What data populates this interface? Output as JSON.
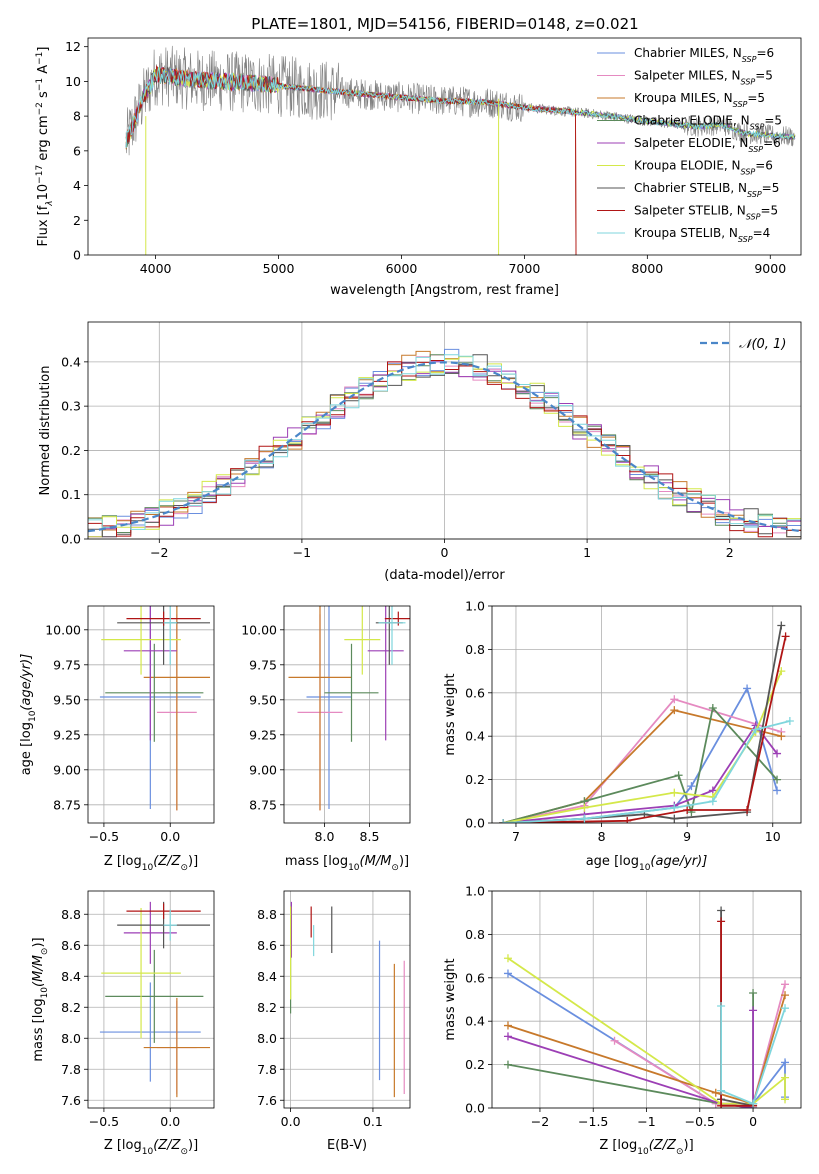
{
  "title": "PLATE=1801, MJD=54156, FIBERID=0148, z=0.021",
  "legend": [
    {
      "base": "Chabrier MILES, N",
      "sub": "SSP",
      "tail": "=6",
      "color": "#6a8fdf"
    },
    {
      "base": "Salpeter MILES, N",
      "sub": "SSP",
      "tail": "=5",
      "color": "#e58ac1"
    },
    {
      "base": "Kroupa MILES, N",
      "sub": "SSP",
      "tail": "=5",
      "color": "#c7792b"
    },
    {
      "base": "Chabrier ELODIE, N",
      "sub": "SSP",
      "tail": "=5",
      "color": "#5c8a5c"
    },
    {
      "base": "Salpeter ELODIE, N",
      "sub": "SSP",
      "tail": "=6",
      "color": "#9c3fb5"
    },
    {
      "base": "Kroupa ELODIE, N",
      "sub": "SSP",
      "tail": "=6",
      "color": "#d4e84a"
    },
    {
      "base": "Chabrier STELIB, N",
      "sub": "SSP",
      "tail": "=5",
      "color": "#555555"
    },
    {
      "base": "Salpeter STELIB, N",
      "sub": "SSP",
      "tail": "=5",
      "color": "#b01515"
    },
    {
      "base": "Kroupa STELIB, N",
      "sub": "SSP",
      "tail": "=4",
      "color": "#7fd6dd"
    }
  ],
  "chart_data": [
    {
      "id": "spectrum",
      "type": "line",
      "xlabel": "wavelength [Angstrom, rest frame]",
      "ylabel_parts": [
        "Flux [f",
        "λ",
        "10",
        "−17",
        " erg cm",
        "−2",
        " s",
        "−1",
        " A",
        "−1",
        "]"
      ],
      "xlim": [
        3450,
        9250
      ],
      "ylim": [
        0,
        12.5
      ],
      "xticks": [
        4000,
        5000,
        6000,
        7000,
        8000,
        9000
      ],
      "yticks": [
        0,
        2,
        4,
        6,
        8,
        10,
        12
      ],
      "continuum": [
        [
          3760,
          6.5
        ],
        [
          3900,
          9.0
        ],
        [
          4000,
          10.4
        ],
        [
          4300,
          10.1
        ],
        [
          4800,
          9.9
        ],
        [
          5200,
          9.6
        ],
        [
          5800,
          9.2
        ],
        [
          6300,
          8.9
        ],
        [
          6700,
          8.8
        ],
        [
          7000,
          8.5
        ],
        [
          7300,
          8.3
        ],
        [
          7600,
          8.1
        ],
        [
          8000,
          7.7
        ],
        [
          8400,
          7.4
        ],
        [
          8600,
          7.5
        ],
        [
          8800,
          7.0
        ],
        [
          9200,
          6.8
        ]
      ]
    },
    {
      "id": "residuals",
      "type": "step-histogram",
      "xlabel": "(data-model)/error",
      "ylabel": "Normed distribution",
      "xlim": [
        -2.5,
        2.5
      ],
      "ylim": [
        0,
        0.49
      ],
      "xticks": [
        -2,
        -1,
        0,
        1,
        2
      ],
      "yticks": [
        0.0,
        0.1,
        0.2,
        0.3,
        0.4
      ],
      "bin_width": 0.1,
      "model": "N(0,1)",
      "model_legend": {
        "script": "𝒩",
        "rest": "(0, 1)"
      }
    },
    {
      "id": "age-vs-Z",
      "type": "scatter",
      "xlabel_parts": [
        "Z [log",
        "10",
        "(Z/Z",
        "⊙",
        ")]"
      ],
      "ylabel_parts": [
        "age  [log",
        "10",
        "(age/yr)]"
      ],
      "xlim": [
        -0.62,
        0.33
      ],
      "ylim": [
        8.62,
        10.17
      ],
      "xticks": [
        -0.5,
        0.0
      ],
      "yticks": [
        8.75,
        9.0,
        9.25,
        9.5,
        9.75,
        10.0
      ],
      "points": [
        {
          "series": "Chabrier MILES",
          "x": -0.15,
          "y": 9.52,
          "xerr": 0.38,
          "yerr": 0.8
        },
        {
          "series": "Salpeter MILES",
          "x": 0.05,
          "y": 9.41,
          "xerr": 0.15,
          "yerr": 0.7
        },
        {
          "series": "Kroupa MILES",
          "x": 0.05,
          "y": 9.66,
          "xerr": 0.25,
          "yerr": 0.95
        },
        {
          "series": "Chabrier ELODIE",
          "x": -0.12,
          "y": 9.55,
          "xerr": 0.37,
          "yerr": 0.35
        },
        {
          "series": "Salpeter ELODIE",
          "x": -0.15,
          "y": 9.85,
          "xerr": 0.2,
          "yerr": 0.64
        },
        {
          "series": "Kroupa ELODIE",
          "x": -0.22,
          "y": 9.93,
          "xerr": 0.3,
          "yerr": 0.25
        },
        {
          "series": "Chabrier STELIB",
          "x": -0.05,
          "y": 10.05,
          "xerr": 0.35,
          "yerr": 0.3
        },
        {
          "series": "Salpeter STELIB",
          "x": -0.05,
          "y": 10.08,
          "xerr": 0.28,
          "yerr": 0.05
        },
        {
          "series": "Kroupa STELIB",
          "x": 0.0,
          "y": 10.05,
          "xerr": 0.05,
          "yerr": 0.3
        }
      ]
    },
    {
      "id": "age-vs-mass",
      "type": "scatter",
      "xlabel_parts": [
        "mass [log",
        "10",
        "(M/M",
        "⊙",
        ")]"
      ],
      "xlim": [
        7.55,
        8.95
      ],
      "ylim": [
        8.62,
        10.17
      ],
      "xticks": [
        8.0,
        8.5
      ],
      "yticks": [
        8.75,
        9.0,
        9.25,
        9.5,
        9.75,
        10.0
      ],
      "points": [
        {
          "series": "Chabrier MILES",
          "x": 8.05,
          "y": 9.52,
          "xerr": 0.25,
          "yerr": 0.8
        },
        {
          "series": "Salpeter MILES",
          "x": 7.95,
          "y": 9.41,
          "xerr": 0.25,
          "yerr": 0.7
        },
        {
          "series": "Kroupa MILES",
          "x": 7.95,
          "y": 9.66,
          "xerr": 0.35,
          "yerr": 0.95
        },
        {
          "series": "Chabrier ELODIE",
          "x": 8.3,
          "y": 9.55,
          "xerr": 0.3,
          "yerr": 0.35
        },
        {
          "series": "Salpeter ELODIE",
          "x": 8.68,
          "y": 9.85,
          "xerr": 0.2,
          "yerr": 0.64
        },
        {
          "series": "Kroupa ELODIE",
          "x": 8.42,
          "y": 9.93,
          "xerr": 0.2,
          "yerr": 0.25
        },
        {
          "series": "Chabrier STELIB",
          "x": 8.72,
          "y": 10.05,
          "xerr": 0.15,
          "yerr": 0.3
        },
        {
          "series": "Salpeter STELIB",
          "x": 8.82,
          "y": 10.08,
          "xerr": 0.15,
          "yerr": 0.05
        },
        {
          "series": "Kroupa STELIB",
          "x": 8.75,
          "y": 10.05,
          "xerr": 0.15,
          "yerr": 0.3
        }
      ]
    },
    {
      "id": "weight-vs-age",
      "type": "line",
      "xlabel_parts": [
        "age  [log",
        "10",
        "(age/yr)]"
      ],
      "ylabel": "mass weight",
      "xlim": [
        6.72,
        10.33
      ],
      "ylim": [
        0,
        1.0
      ],
      "xticks": [
        7,
        8,
        9,
        10
      ],
      "yticks": [
        0.0,
        0.2,
        0.4,
        0.6,
        0.8,
        1.0
      ],
      "series": [
        {
          "name": "Chabrier MILES",
          "x": [
            6.85,
            7.8,
            8.85,
            9.05,
            9.7,
            10.05
          ],
          "y": [
            0.0,
            0.02,
            0.07,
            0.17,
            0.62,
            0.15
          ]
        },
        {
          "name": "Salpeter MILES",
          "x": [
            6.85,
            7.8,
            8.85,
            10.1
          ],
          "y": [
            0.0,
            0.08,
            0.57,
            0.42
          ]
        },
        {
          "name": "Kroupa MILES",
          "x": [
            6.85,
            7.8,
            8.85,
            10.1
          ],
          "y": [
            0.0,
            0.1,
            0.52,
            0.4
          ]
        },
        {
          "name": "Chabrier ELODIE",
          "x": [
            6.85,
            7.8,
            8.9,
            9.05,
            9.3,
            10.05
          ],
          "y": [
            0.0,
            0.1,
            0.22,
            0.05,
            0.53,
            0.2
          ]
        },
        {
          "name": "Salpeter ELODIE",
          "x": [
            6.85,
            7.8,
            8.85,
            9.3,
            9.8,
            10.05
          ],
          "y": [
            0.0,
            0.04,
            0.08,
            0.15,
            0.45,
            0.32
          ]
        },
        {
          "name": "Kroupa ELODIE",
          "x": [
            6.85,
            7.8,
            8.85,
            9.3,
            9.8,
            10.1
          ],
          "y": [
            0.0,
            0.07,
            0.14,
            0.12,
            0.42,
            0.7
          ]
        },
        {
          "name": "Chabrier STELIB",
          "x": [
            6.85,
            7.8,
            8.5,
            8.85,
            9.7,
            10.1
          ],
          "y": [
            0.0,
            0.02,
            0.04,
            0.02,
            0.05,
            0.91
          ]
        },
        {
          "name": "Salpeter STELIB",
          "x": [
            6.85,
            8.3,
            9.0,
            9.7,
            10.15
          ],
          "y": [
            0.0,
            0.01,
            0.06,
            0.06,
            0.86
          ]
        },
        {
          "name": "Kroupa STELIB",
          "x": [
            6.85,
            7.8,
            8.85,
            9.3,
            9.8,
            10.2
          ],
          "y": [
            0.0,
            0.02,
            0.07,
            0.1,
            0.43,
            0.47
          ]
        }
      ]
    },
    {
      "id": "mass-vs-Z",
      "type": "scatter",
      "xlabel_parts": [
        "Z [log",
        "10",
        "(Z/Z",
        "⊙",
        ")]"
      ],
      "ylabel_parts": [
        "mass [log",
        "10",
        "(M/M",
        "⊙",
        ")]"
      ],
      "xlim": [
        -0.62,
        0.33
      ],
      "ylim": [
        7.55,
        8.95
      ],
      "xticks": [
        -0.5,
        0.0
      ],
      "yticks": [
        7.6,
        7.8,
        8.0,
        8.2,
        8.4,
        8.6,
        8.8
      ],
      "points": [
        {
          "series": "Chabrier MILES",
          "x": -0.15,
          "y": 8.04,
          "xerr": 0.38,
          "yerr": 0.32
        },
        {
          "series": "Salpeter MILES",
          "x": 0.05,
          "y": 7.94,
          "xerr": 0.15,
          "yerr": 0.3
        },
        {
          "series": "Kroupa MILES",
          "x": 0.05,
          "y": 7.94,
          "xerr": 0.25,
          "yerr": 0.32
        },
        {
          "series": "Chabrier ELODIE",
          "x": -0.12,
          "y": 8.27,
          "xerr": 0.37,
          "yerr": 0.3
        },
        {
          "series": "Salpeter ELODIE",
          "x": -0.15,
          "y": 8.68,
          "xerr": 0.2,
          "yerr": 0.2
        },
        {
          "series": "Kroupa ELODIE",
          "x": -0.22,
          "y": 8.42,
          "xerr": 0.3,
          "yerr": 0.42
        },
        {
          "series": "Chabrier STELIB",
          "x": -0.05,
          "y": 8.73,
          "xerr": 0.35,
          "yerr": 0.15
        },
        {
          "series": "Salpeter STELIB",
          "x": -0.05,
          "y": 8.82,
          "xerr": 0.28,
          "yerr": 0.05
        },
        {
          "series": "Kroupa STELIB",
          "x": 0.0,
          "y": 8.73,
          "xerr": 0.05,
          "yerr": 0.1
        }
      ]
    },
    {
      "id": "mass-vs-EBV",
      "type": "scatter",
      "xlabel": "E(B-V)",
      "xlim": [
        -0.008,
        0.145
      ],
      "ylim": [
        7.55,
        8.95
      ],
      "xticks": [
        0.0,
        0.1
      ],
      "yticks": [
        7.6,
        7.8,
        8.0,
        8.2,
        8.4,
        8.6,
        8.8
      ],
      "points": [
        {
          "series": "Chabrier MILES",
          "x": 0.108,
          "y": 8.18,
          "yerr": 0.45
        },
        {
          "series": "Salpeter MILES",
          "x": 0.138,
          "y": 8.07,
          "yerr": 0.43
        },
        {
          "series": "Kroupa MILES",
          "x": 0.126,
          "y": 8.05,
          "yerr": 0.43
        },
        {
          "series": "Chabrier ELODIE",
          "x": 0.0,
          "y": 8.44,
          "yerr": 0.28
        },
        {
          "series": "Salpeter ELODIE",
          "x": 0.001,
          "y": 8.7,
          "yerr": 0.18
        },
        {
          "series": "Kroupa ELODIE",
          "x": 0.0,
          "y": 8.55,
          "yerr": 0.3
        },
        {
          "series": "Chabrier STELIB",
          "x": 0.05,
          "y": 8.7,
          "yerr": 0.15
        },
        {
          "series": "Salpeter STELIB",
          "x": 0.025,
          "y": 8.75,
          "yerr": 0.1
        },
        {
          "series": "Kroupa STELIB",
          "x": 0.028,
          "y": 8.63,
          "yerr": 0.1
        }
      ]
    },
    {
      "id": "weight-vs-Z",
      "type": "line",
      "xlabel_parts": [
        "Z [log",
        "10",
        "(Z/Z",
        "⊙",
        ")]"
      ],
      "ylabel": "mass weight",
      "xlim": [
        -2.45,
        0.45
      ],
      "ylim": [
        0,
        1.0
      ],
      "xticks": [
        -2.0,
        -1.5,
        -1.0,
        -0.5,
        0.0
      ],
      "yticks": [
        0.0,
        0.2,
        0.4,
        0.6,
        0.8,
        1.0
      ],
      "series": [
        {
          "name": "Chabrier MILES",
          "x": [
            -2.3,
            -0.35,
            0.0,
            0.3,
            0.3
          ],
          "y": [
            0.62,
            0.02,
            0.02,
            0.21,
            0.05
          ]
        },
        {
          "name": "Salpeter MILES",
          "x": [
            -1.3,
            -0.35,
            0.0,
            0.3
          ],
          "y": [
            0.31,
            0.02,
            0.02,
            0.57
          ]
        },
        {
          "name": "Kroupa MILES",
          "x": [
            -2.3,
            -0.35,
            0.0,
            0.3
          ],
          "y": [
            0.38,
            0.07,
            0.02,
            0.52
          ]
        },
        {
          "name": "Chabrier ELODIE",
          "x": [
            -2.3,
            -0.3,
            0.0,
            0.0
          ],
          "y": [
            0.2,
            0.02,
            0.0,
            0.53
          ]
        },
        {
          "name": "Salpeter ELODIE",
          "x": [
            -2.3,
            -0.3,
            0.0,
            0.0
          ],
          "y": [
            0.33,
            0.02,
            0.0,
            0.45
          ]
        },
        {
          "name": "Kroupa ELODIE",
          "x": [
            -2.3,
            -0.3,
            0.0,
            0.3,
            0.3
          ],
          "y": [
            0.69,
            0.02,
            0.02,
            0.14,
            0.04
          ]
        },
        {
          "name": "Chabrier STELIB",
          "x": [
            -0.3,
            -0.3,
            0.0,
            0.0
          ],
          "y": [
            0.91,
            0.04,
            0.01,
            0.02
          ]
        },
        {
          "name": "Salpeter STELIB",
          "x": [
            -0.3,
            -0.3,
            0.0
          ],
          "y": [
            0.86,
            0.01,
            0.01
          ]
        },
        {
          "name": "Kroupa STELIB",
          "x": [
            -0.3,
            -0.3,
            0.0,
            0.3
          ],
          "y": [
            0.47,
            0.08,
            0.02,
            0.46
          ]
        }
      ]
    }
  ]
}
